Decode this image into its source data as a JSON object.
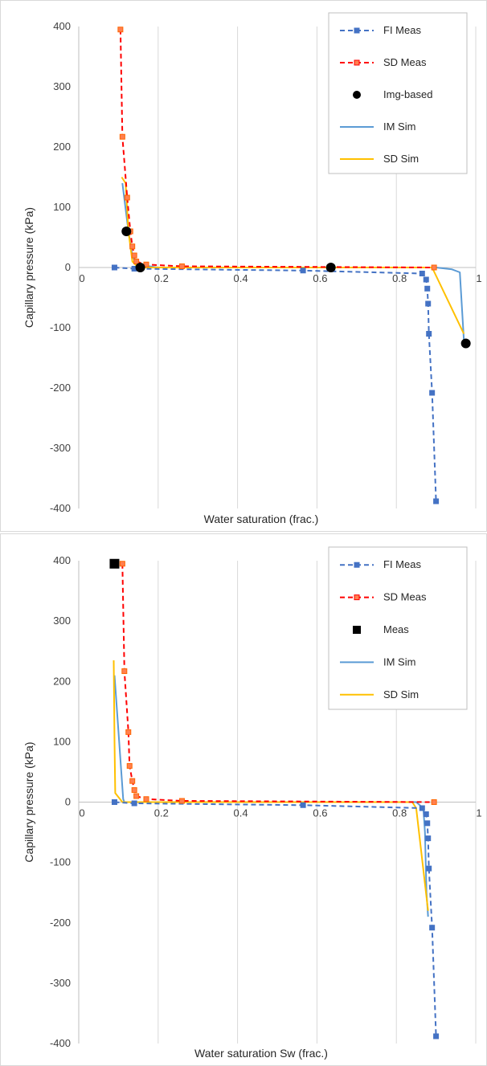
{
  "chart_data": [
    {
      "type": "scatter",
      "xlabel": "Water saturation (frac.)",
      "ylabel": "Capillary pressure (kPa)",
      "xlim": [
        0,
        1
      ],
      "ylim": [
        -400,
        400
      ],
      "x_ticks": [
        "0",
        "0.2",
        "0.4",
        "0.6",
        "0.8",
        "1"
      ],
      "y_ticks": [
        "400",
        "300",
        "200",
        "100",
        "0",
        "-100",
        "-200",
        "-300",
        "-400"
      ],
      "grid": "vertical",
      "legend_position": "top-right",
      "series": [
        {
          "name": "FI Meas",
          "style": "dashed-line-square-markers",
          "color": "#4472c4",
          "x": [
            0.09,
            0.14,
            0.565,
            0.865,
            0.875,
            0.878,
            0.88,
            0.882,
            0.89,
            0.9
          ],
          "y": [
            0,
            -2,
            -5,
            -10,
            -20,
            -35,
            -60,
            -110,
            -208,
            -388
          ]
        },
        {
          "name": "SD Meas",
          "style": "dashed-line-square-markers",
          "color": "#ff0000",
          "x": [
            0.105,
            0.11,
            0.122,
            0.13,
            0.135,
            0.14,
            0.145,
            0.17,
            0.26,
            0.895
          ],
          "y": [
            395,
            217,
            116,
            60,
            35,
            20,
            10,
            5,
            2,
            0
          ]
        },
        {
          "name": "Img-based",
          "style": "circle-markers",
          "color": "#000000",
          "x": [
            0.12,
            0.155,
            0.635,
            0.975
          ],
          "y": [
            60,
            0,
            0,
            -126
          ]
        },
        {
          "name": "IM Sim",
          "style": "solid-line",
          "color": "#5b9bd5",
          "x": [
            0.11,
            0.125,
            0.135,
            0.145,
            0.2,
            0.6,
            0.9,
            0.94,
            0.96,
            0.97
          ],
          "y": [
            140,
            60,
            20,
            5,
            0,
            0,
            0,
            -3,
            -8,
            -120
          ]
        },
        {
          "name": "SD Sim",
          "style": "solid-line",
          "color": "#ffc000",
          "x": [
            0.108,
            0.118,
            0.125,
            0.135,
            0.15,
            0.3,
            0.6,
            0.89,
            0.97
          ],
          "y": [
            150,
            140,
            60,
            10,
            0,
            0,
            0,
            0,
            -110
          ]
        }
      ]
    },
    {
      "type": "scatter",
      "xlabel": "Water saturation Sw (frac.)",
      "ylabel": "Capillary pressure (kPa)",
      "xlim": [
        0,
        1
      ],
      "ylim": [
        -400,
        400
      ],
      "x_ticks": [
        "0",
        "0.2",
        "0.4",
        "0.6",
        "0.8",
        "1"
      ],
      "y_ticks": [
        "400",
        "300",
        "200",
        "100",
        "0",
        "-100",
        "-200",
        "-300",
        "-400"
      ],
      "grid": "vertical",
      "legend_position": "top-right",
      "series": [
        {
          "name": "FI Meas",
          "style": "dashed-line-square-markers",
          "color": "#4472c4",
          "x": [
            0.09,
            0.14,
            0.565,
            0.865,
            0.875,
            0.878,
            0.88,
            0.882,
            0.89,
            0.9
          ],
          "y": [
            0,
            -2,
            -5,
            -10,
            -20,
            -35,
            -60,
            -110,
            -208,
            -388
          ]
        },
        {
          "name": "SD Meas",
          "style": "dashed-line-square-markers",
          "color": "#ff0000",
          "x": [
            0.11,
            0.115,
            0.125,
            0.128,
            0.135,
            0.14,
            0.145,
            0.17,
            0.26,
            0.895
          ],
          "y": [
            395,
            217,
            116,
            60,
            35,
            20,
            10,
            5,
            2,
            0
          ]
        },
        {
          "name": "Meas",
          "style": "square-markers",
          "color": "#000000",
          "x": [
            0.09
          ],
          "y": [
            395
          ]
        },
        {
          "name": "IM Sim",
          "style": "solid-line",
          "color": "#5b9bd5",
          "x": [
            0.09,
            0.112,
            0.115,
            0.2,
            0.6,
            0.85,
            0.868,
            0.872,
            0.876,
            0.88
          ],
          "y": [
            210,
            5,
            0,
            0,
            0,
            0,
            -10,
            -50,
            -150,
            -190
          ]
        },
        {
          "name": "SD Sim",
          "style": "solid-line",
          "color": "#ffc000",
          "x": [
            0.088,
            0.09,
            0.092,
            0.11,
            0.2,
            0.6,
            0.84,
            0.85,
            0.88
          ],
          "y": [
            235,
            100,
            15,
            0,
            0,
            0,
            0,
            -10,
            -180
          ]
        }
      ]
    }
  ]
}
